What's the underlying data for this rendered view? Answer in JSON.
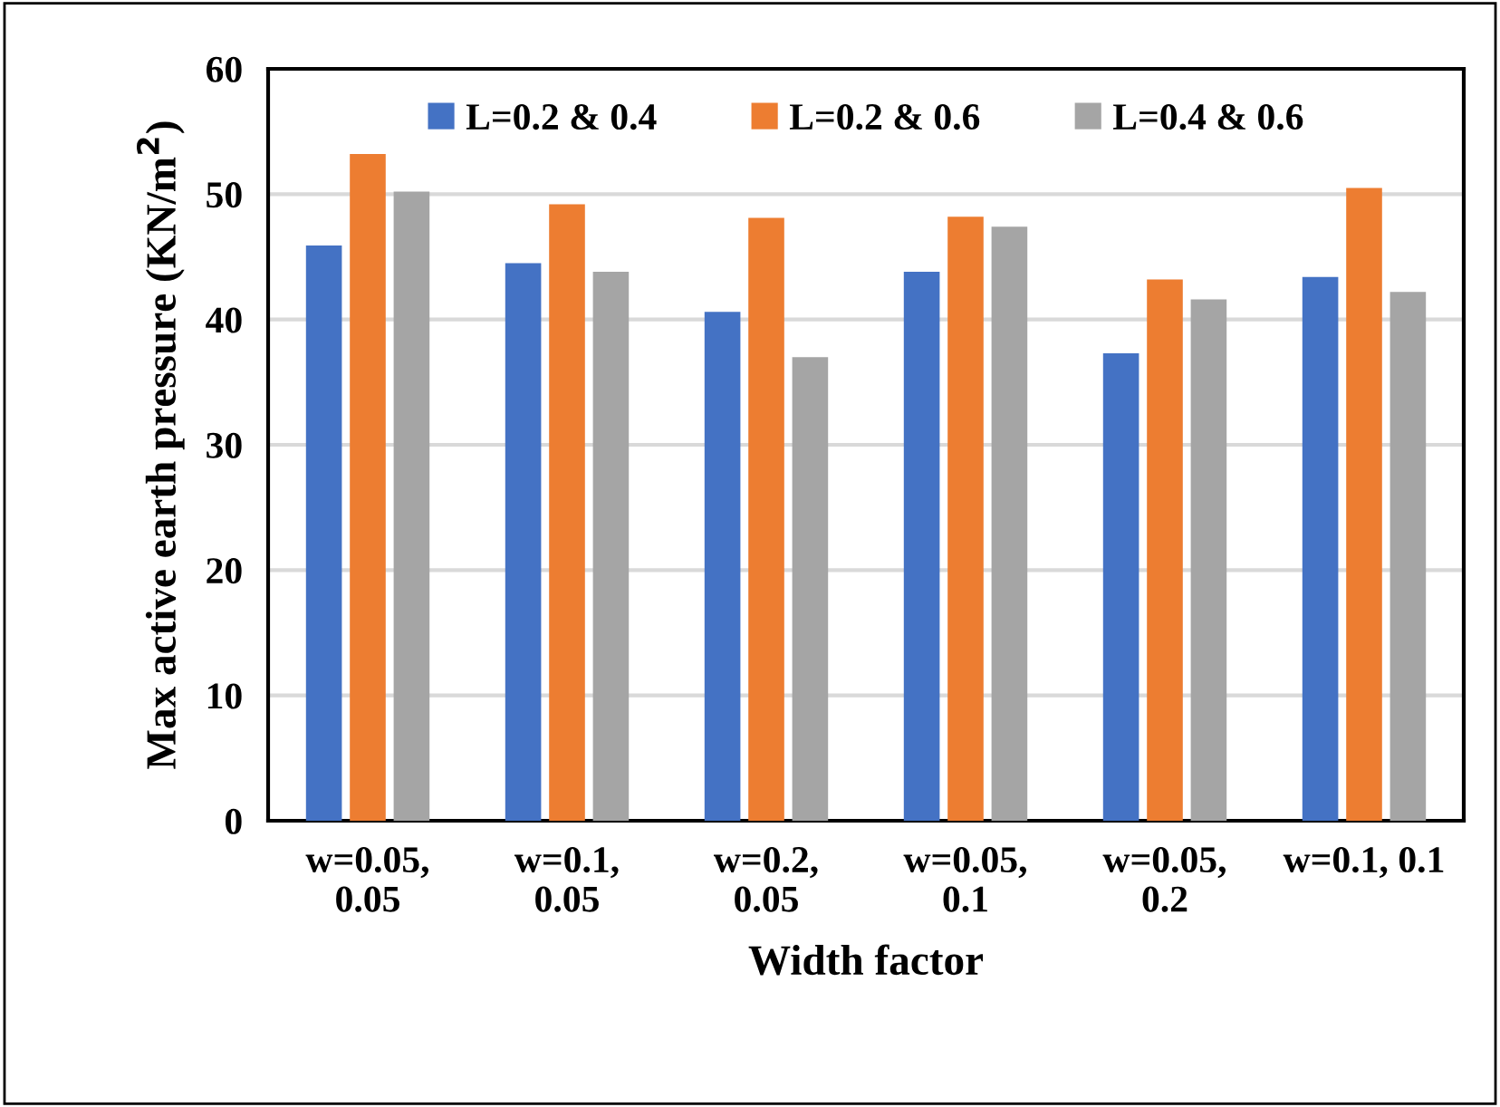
{
  "chart_data": {
    "type": "bar",
    "xlabel": "Width factor",
    "ylabel": "Max active earth pressure (KN/m$^{2}$)",
    "categories": [
      "w=0.05,\n0.05",
      "w=0.1,\n0.05",
      "w=0.2,\n0.05",
      "w=0.05,\n0.1",
      "w=0.05,\n0.2",
      "w=0.1, 0.1"
    ],
    "series": [
      {
        "name": "L=0.2 & 0.4",
        "color": "#4472c4",
        "values": [
          45.9,
          44.5,
          40.6,
          43.8,
          37.3,
          43.4
        ]
      },
      {
        "name": "L=0.2 & 0.6",
        "color": "#ed7d31",
        "values": [
          53.2,
          49.2,
          48.1,
          48.2,
          43.2,
          50.5
        ]
      },
      {
        "name": "L=0.4 & 0.6",
        "color": "#a5a5a5",
        "values": [
          50.2,
          43.8,
          37.0,
          47.4,
          41.6,
          42.2
        ]
      }
    ],
    "ylim": [
      0,
      60
    ],
    "yticks": [
      0,
      10,
      20,
      30,
      40,
      50,
      60
    ],
    "grid": "y",
    "legend": "top"
  }
}
